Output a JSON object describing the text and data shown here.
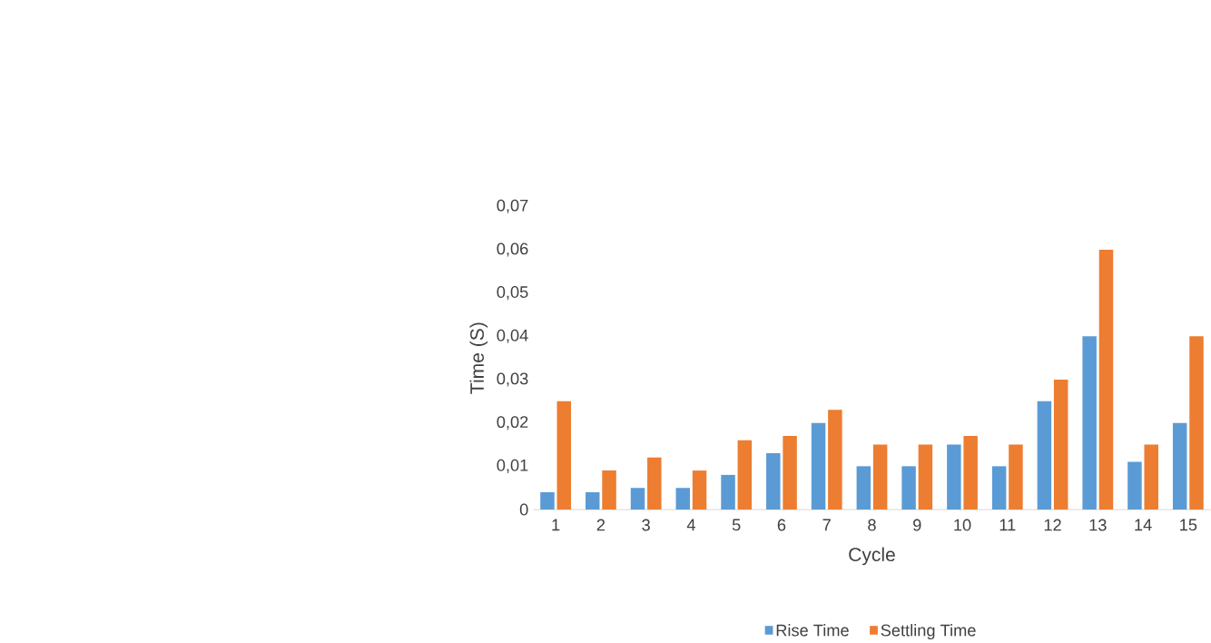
{
  "chart_data": {
    "type": "bar",
    "xlabel": "Cycle",
    "ylabel": "Time (S)",
    "categories": [
      "1",
      "2",
      "3",
      "4",
      "5",
      "6",
      "7",
      "8",
      "9",
      "10",
      "11",
      "12",
      "13",
      "14",
      "15"
    ],
    "series": [
      {
        "name": "Rise Time",
        "color": "#5b9bd5",
        "values": [
          0.004,
          0.004,
          0.005,
          0.005,
          0.008,
          0.013,
          0.02,
          0.01,
          0.01,
          0.015,
          0.01,
          0.025,
          0.04,
          0.011,
          0.02
        ]
      },
      {
        "name": "Settling Time",
        "color": "#ed7d31",
        "values": [
          0.025,
          0.009,
          0.012,
          0.009,
          0.016,
          0.017,
          0.023,
          0.015,
          0.015,
          0.017,
          0.015,
          0.03,
          0.06,
          0.015,
          0.04
        ]
      }
    ],
    "ylim": [
      0,
      0.07
    ],
    "yticks": [
      {
        "value": 0,
        "label": "0"
      },
      {
        "value": 0.01,
        "label": "0,01"
      },
      {
        "value": 0.02,
        "label": "0,02"
      },
      {
        "value": 0.03,
        "label": "0,03"
      },
      {
        "value": 0.04,
        "label": "0,04"
      },
      {
        "value": 0.05,
        "label": "0,05"
      },
      {
        "value": 0.06,
        "label": "0,06"
      },
      {
        "value": 0.07,
        "label": "0,07"
      }
    ],
    "grid": false,
    "legend": "bottom"
  }
}
